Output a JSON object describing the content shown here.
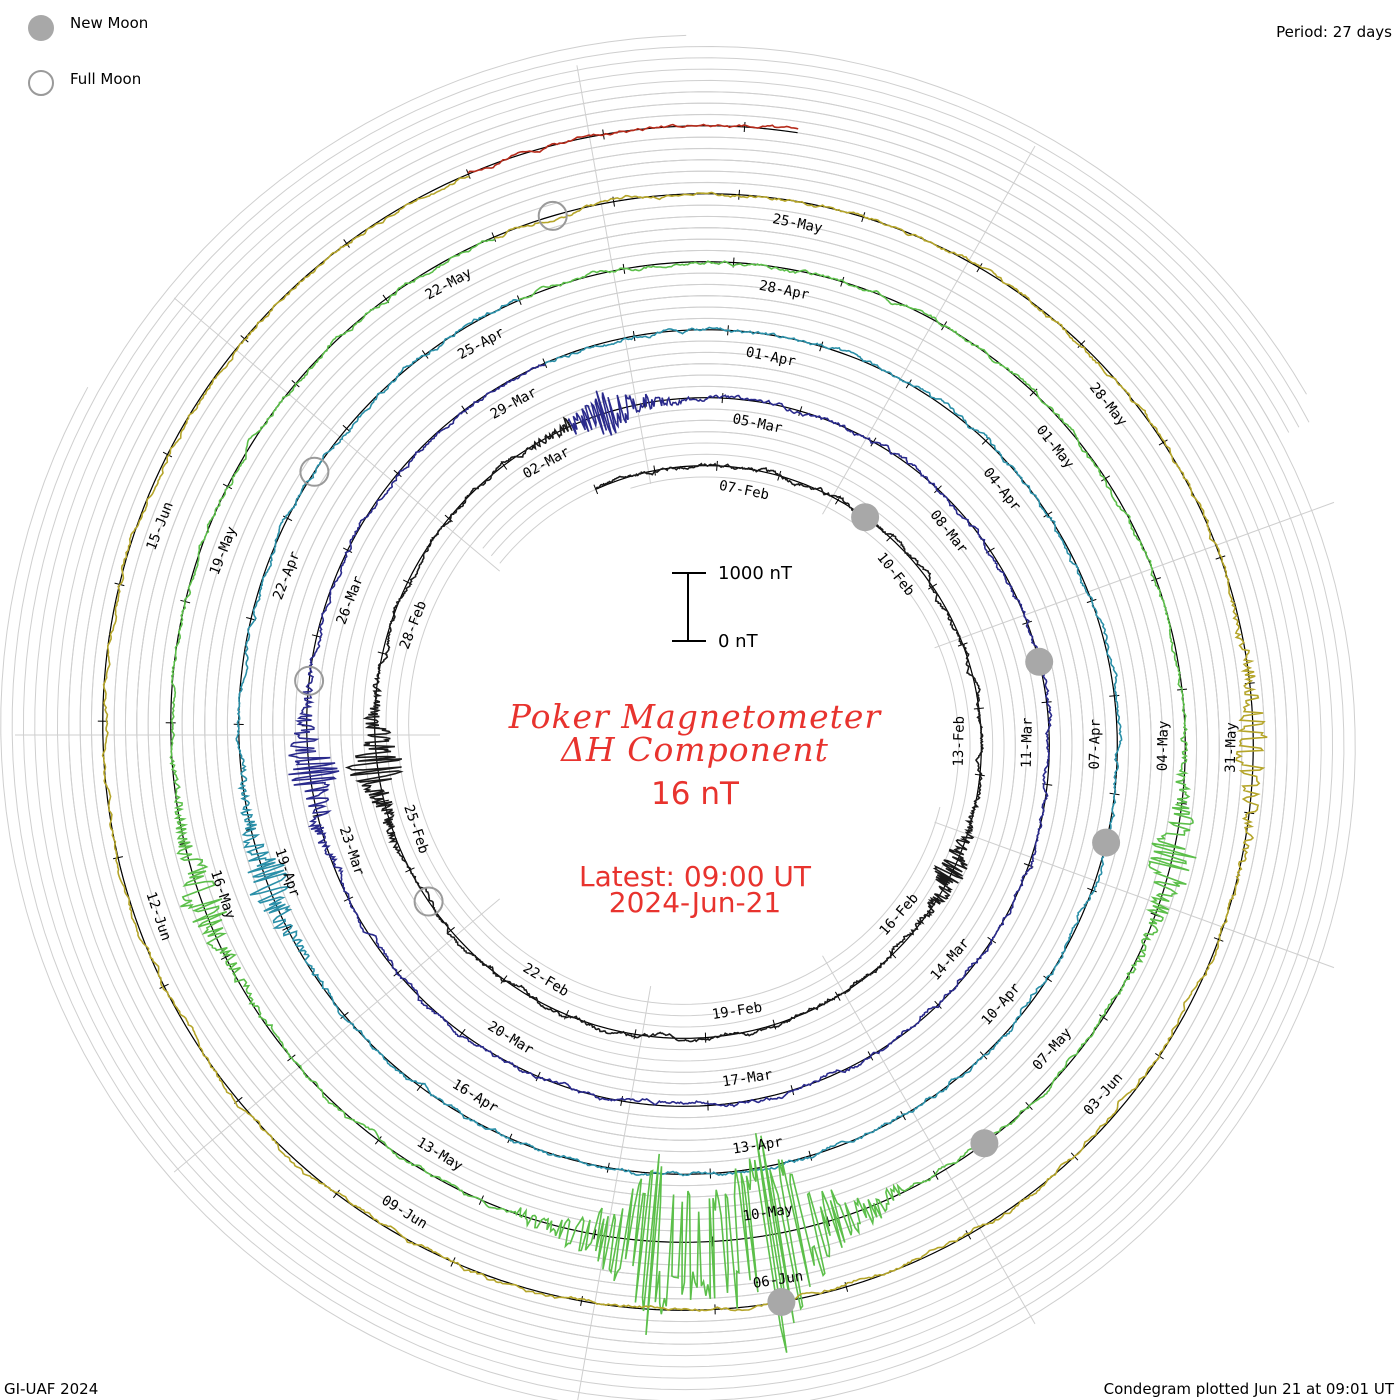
{
  "legend": {
    "new_moon_label": "New Moon",
    "full_moon_label": "Full Moon",
    "new_moon_color": "#a8a8a8",
    "full_moon_color": "#9a9a9a"
  },
  "period_label": "Period: 27 days",
  "title_line1": "Poker Magnetometer",
  "title_line2": "ΔH Component",
  "current_value": "16 nT",
  "latest_line1": "Latest: 09:00 UT",
  "latest_line2": "2024-Jun-21",
  "scale": {
    "top_label": "1000 nT",
    "bottom_label": "0 nT"
  },
  "footer_left": "GI-UAF 2024",
  "footer_right": "Condegram plotted Jun 21 at 09:01 UT",
  "title_color": "#e8332e",
  "chart_data": {
    "type": "condegram",
    "period_days": 27,
    "units": "nT",
    "scale_bar_nT": [
      0,
      1000
    ],
    "start": "2024-02-05",
    "end": "2024-06-21",
    "rings": [
      {
        "start": "2024-02-05",
        "color": "#1a1a1a",
        "labels": [
          "07-Feb",
          "10-Feb",
          "13-Feb",
          "16-Feb",
          "19-Feb",
          "22-Feb",
          "25-Feb",
          "28-Feb",
          "02-Mar"
        ]
      },
      {
        "start": "2024-03-03",
        "color": "#2a2a8c",
        "labels": [
          "05-Mar",
          "08-Mar",
          "11-Mar",
          "14-Mar",
          "17-Mar",
          "20-Mar",
          "23-Mar",
          "26-Mar",
          "29-Mar"
        ]
      },
      {
        "start": "2024-03-30",
        "color": "#2a8fa8",
        "labels": [
          "01-Apr",
          "04-Apr",
          "07-Apr",
          "10-Apr",
          "13-Apr",
          "16-Apr",
          "19-Apr",
          "22-Apr",
          "25-Apr"
        ]
      },
      {
        "start": "2024-04-26",
        "color": "#5cbf4a",
        "labels": [
          "28-Apr",
          "01-May",
          "04-May",
          "07-May",
          "10-May",
          "13-May",
          "16-May",
          "19-May",
          "22-May"
        ]
      },
      {
        "start": "2024-05-23",
        "color": "#b5a52a",
        "labels": [
          "25-May",
          "28-May",
          "31-May",
          "03-Jun",
          "06-Jun",
          "09-Jun",
          "12-Jun",
          "15-Jun"
        ]
      },
      {
        "start": "2024-06-19",
        "color": "#b52a1a",
        "labels": []
      }
    ],
    "events": [
      {
        "date": "2024-02-15",
        "peak_nT": 180
      },
      {
        "date": "2024-02-26",
        "peak_nT": 350
      },
      {
        "date": "2024-03-03",
        "peak_nT": 280
      },
      {
        "date": "2024-03-24",
        "peak_nT": 320
      },
      {
        "date": "2024-04-19",
        "peak_nT": 260
      },
      {
        "date": "2024-05-05",
        "peak_nT": 300
      },
      {
        "date": "2024-05-10",
        "peak_nT": 1200
      },
      {
        "date": "2024-05-11",
        "peak_nT": 900
      },
      {
        "date": "2024-05-16",
        "peak_nT": 250
      },
      {
        "date": "2024-05-31",
        "peak_nT": 220
      }
    ],
    "new_moons": [
      "2024-02-09",
      "2024-03-10",
      "2024-04-08",
      "2024-05-08",
      "2024-06-06"
    ],
    "full_moons": [
      "2024-02-24",
      "2024-03-25",
      "2024-04-23",
      "2024-05-23"
    ]
  }
}
